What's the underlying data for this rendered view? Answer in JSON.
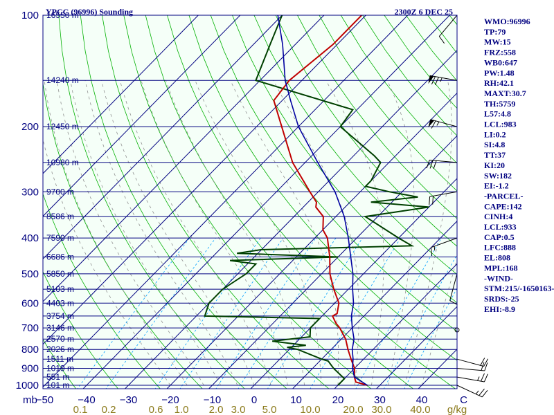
{
  "chart_data": {
    "type": "skew-t",
    "title": "YPCC (96996) Sounding",
    "time": "2300Z  6 DEC 25",
    "pressure_levels": [
      100,
      200,
      300,
      400,
      500,
      600,
      700,
      800,
      900,
      1000
    ],
    "pressure_labels": [
      "100",
      "200",
      "300",
      "400",
      "500",
      "600",
      "700",
      "800",
      "900",
      "1000"
    ],
    "height_marks": [
      {
        "p": 100,
        "label": "16550 m"
      },
      {
        "p": 150,
        "label": "14240 m"
      },
      {
        "p": 200,
        "label": "12450 m"
      },
      {
        "p": 250,
        "label": "10980 m"
      },
      {
        "p": 300,
        "label": "9700 m"
      },
      {
        "p": 350,
        "label": "8586 m"
      },
      {
        "p": 400,
        "label": "7590 m"
      },
      {
        "p": 450,
        "label": "6686 m"
      },
      {
        "p": 500,
        "label": "5850 m"
      },
      {
        "p": 550,
        "label": "5103 m"
      },
      {
        "p": 600,
        "label": "4403 m"
      },
      {
        "p": 650,
        "label": "3754 m"
      },
      {
        "p": 700,
        "label": "3146 m"
      },
      {
        "p": 750,
        "label": "2570 m"
      },
      {
        "p": 800,
        "label": "2026 m"
      },
      {
        "p": 850,
        "label": "1511 m"
      },
      {
        "p": 900,
        "label": "1019 m"
      },
      {
        "p": 950,
        "label": "551 m"
      },
      {
        "p": 1000,
        "label": "101 m"
      }
    ],
    "isotherms": [
      -100,
      -90,
      -80,
      -70,
      -60,
      -50,
      -40,
      -30,
      -20,
      -10,
      0,
      10,
      20,
      30,
      40
    ],
    "temp_tick_labels": [
      "−50",
      "−40",
      "−30",
      "−20",
      "−10",
      "0",
      "10",
      "20",
      "30",
      "40",
      "C"
    ],
    "temp_tick_values": [
      -50,
      -40,
      -30,
      -20,
      -10,
      0,
      10,
      20,
      30,
      40,
      50
    ],
    "pressure_unit_label": "mb",
    "mixing_ratio_labels": [
      "0.1",
      "0.2",
      "0.6",
      "1.0",
      "2.0",
      "3.0",
      "5.0",
      "10.0",
      "20.0",
      "30.0",
      "40.0",
      "g/kg"
    ],
    "mixing_ratio_values": [
      0.1,
      0.2,
      0.6,
      1.0,
      2.0,
      3.0,
      5.0,
      10.0,
      20.0,
      30.0,
      40.0
    ],
    "temperature_profile": [
      [
        1000,
        27
      ],
      [
        980,
        23.5
      ],
      [
        950,
        22
      ],
      [
        925,
        21
      ],
      [
        900,
        20
      ],
      [
        850,
        17
      ],
      [
        800,
        14
      ],
      [
        750,
        11
      ],
      [
        700,
        7
      ],
      [
        680,
        5
      ],
      [
        650,
        2.5
      ],
      [
        640,
        3
      ],
      [
        600,
        1
      ],
      [
        550,
        -3.5
      ],
      [
        500,
        -8
      ],
      [
        450,
        -12
      ],
      [
        400,
        -17
      ],
      [
        380,
        -20
      ],
      [
        350,
        -23
      ],
      [
        330,
        -27
      ],
      [
        320,
        -28
      ],
      [
        300,
        -32
      ],
      [
        250,
        -43
      ],
      [
        200,
        -54
      ],
      [
        170,
        -62
      ],
      [
        150,
        -63
      ],
      [
        120,
        -61
      ],
      [
        100,
        -61
      ]
    ],
    "dewpoint_profile": [
      [
        1000,
        20
      ],
      [
        960,
        20
      ],
      [
        900,
        15
      ],
      [
        860,
        12
      ],
      [
        850,
        10
      ],
      [
        800,
        2
      ],
      [
        790,
        -1
      ],
      [
        780,
        3
      ],
      [
        760,
        -6
      ],
      [
        740,
        2
      ],
      [
        700,
        0
      ],
      [
        660,
        0
      ],
      [
        650,
        -28
      ],
      [
        600,
        -30
      ],
      [
        550,
        -30
      ],
      [
        500,
        -28
      ],
      [
        470,
        -28
      ],
      [
        460,
        -35
      ],
      [
        450,
        -10
      ],
      [
        440,
        -35
      ],
      [
        430,
        -30
      ],
      [
        420,
        5
      ],
      [
        400,
        0
      ],
      [
        350,
        -13
      ],
      [
        330,
        0
      ],
      [
        320,
        -15
      ],
      [
        310,
        -5
      ],
      [
        300,
        -13
      ],
      [
        290,
        -20
      ],
      [
        280,
        -20
      ],
      [
        250,
        -22
      ],
      [
        240,
        -25
      ],
      [
        200,
        -40
      ],
      [
        180,
        -41
      ],
      [
        150,
        -71
      ],
      [
        120,
        -76
      ],
      [
        100,
        -80
      ]
    ],
    "parcel_profile": [
      [
        1000,
        27
      ],
      [
        950,
        22
      ],
      [
        900,
        19.5
      ],
      [
        850,
        17.5
      ],
      [
        800,
        15
      ],
      [
        750,
        13
      ],
      [
        700,
        10
      ],
      [
        650,
        7
      ],
      [
        600,
        4.5
      ],
      [
        550,
        1
      ],
      [
        500,
        -2.5
      ],
      [
        450,
        -7
      ],
      [
        400,
        -12
      ],
      [
        350,
        -18
      ],
      [
        300,
        -26
      ],
      [
        250,
        -37
      ],
      [
        200,
        -50
      ],
      [
        170,
        -58
      ],
      [
        150,
        -64
      ],
      [
        120,
        -73
      ],
      [
        100,
        -81
      ]
    ],
    "wind_barbs": [
      {
        "p": 100,
        "dir": 220,
        "spd": 10
      },
      {
        "p": 150,
        "dir": 280,
        "spd": 75
      },
      {
        "p": 200,
        "dir": 285,
        "spd": 65
      },
      {
        "p": 250,
        "dir": 275,
        "spd": 30
      },
      {
        "p": 300,
        "dir": 260,
        "spd": 20
      },
      {
        "p": 400,
        "dir": 250,
        "spd": 15
      },
      {
        "p": 500,
        "dir": 195,
        "spd": 10
      },
      {
        "p": 700,
        "dir": 0,
        "spd": 0
      },
      {
        "p": 850,
        "dir": 105,
        "spd": 20
      },
      {
        "p": 900,
        "dir": 95,
        "spd": 20
      },
      {
        "p": 950,
        "dir": 100,
        "spd": 25
      },
      {
        "p": 1000,
        "dir": 115,
        "spd": 25
      }
    ],
    "indices": [
      "WMO:96996",
      "TP:79",
      "MW:15",
      "FRZ:558",
      "WB0:647",
      "PW:1.48",
      "RH:42.1",
      "MAXT:30.7",
      "TH:5759",
      "L57:4.8",
      "LCL:983",
      "LI:0.2",
      "SI:4.8",
      "TT:37",
      "KI:20",
      "SW:182",
      "EI:-1.2",
      "-PARCEL-",
      "CAPE:142",
      "CINH:4",
      "LCL:933",
      "CAP:0.5",
      "LFC:888",
      "EL:808",
      "MPL:168",
      "-WIND-",
      "STM:215/-1650163-",
      "SRDS:-25",
      "EHI:-8.9"
    ],
    "colors": {
      "background": "#f5fff8",
      "border": "#000080",
      "isobar": "#000080",
      "isotherm": "#000080",
      "dry_adiabat": "#00b000",
      "moist_adiabat": "#909090",
      "mixing_ratio": "#00a0ff",
      "temperature": "#c00000",
      "dewpoint": "#004000",
      "parcel": "#0000a0",
      "barb": "#000000"
    }
  }
}
